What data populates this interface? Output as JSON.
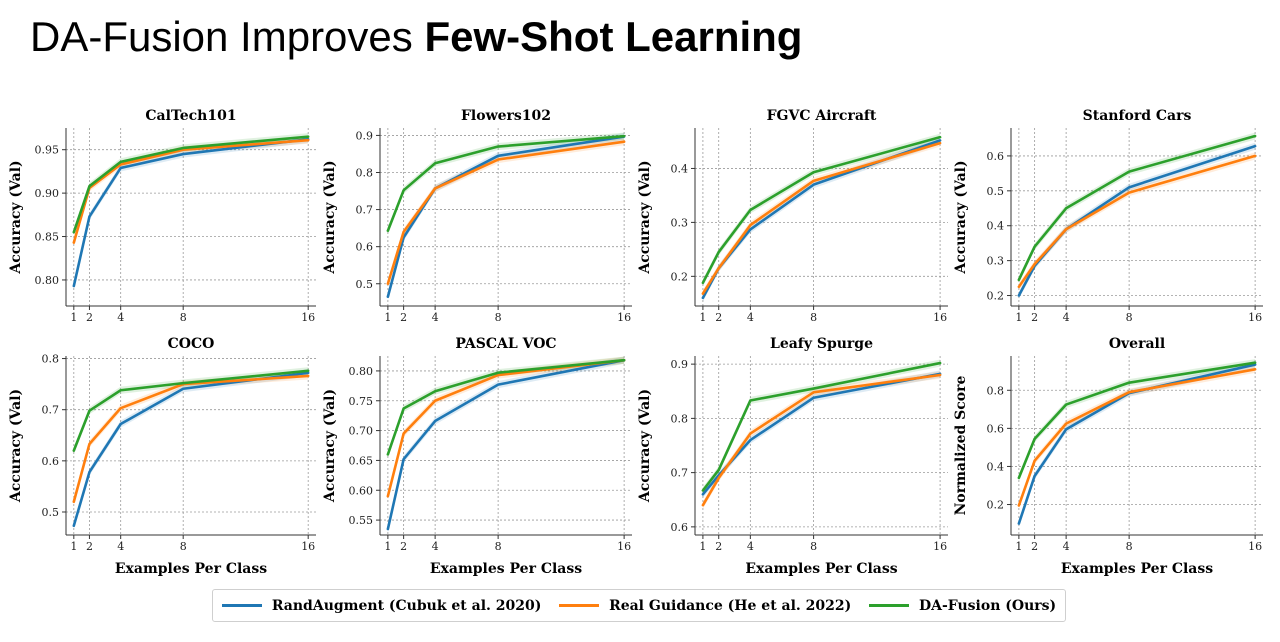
{
  "slide": {
    "title_regular": "DA-Fusion Improves ",
    "title_bold": "Few-Shot Learning"
  },
  "series_styles": [
    {
      "name": "RandAugment (Cubuk et al. 2020)",
      "color": "#1f77b4"
    },
    {
      "name": "Real Guidance (He et al. 2022)",
      "color": "#ff7f0e"
    },
    {
      "name": "DA-Fusion (Ours)",
      "color": "#2ca02c"
    }
  ],
  "chart_data": [
    {
      "type": "line",
      "title": "CalTech101",
      "xlabel": "",
      "ylabel": "Accuracy (Val)",
      "x": [
        1,
        2,
        4,
        8,
        16
      ],
      "ylim": [
        0.77,
        0.975
      ],
      "yticks": [
        "0.80",
        "0.85",
        "0.90",
        "0.95"
      ],
      "grid": true,
      "series": [
        {
          "name": "RandAugment (Cubuk et al. 2020)",
          "values": [
            0.793,
            0.873,
            0.929,
            0.945,
            0.962
          ]
        },
        {
          "name": "Real Guidance (He et al. 2022)",
          "values": [
            0.843,
            0.906,
            0.933,
            0.95,
            0.961
          ]
        },
        {
          "name": "DA-Fusion (Ours)",
          "values": [
            0.855,
            0.908,
            0.936,
            0.952,
            0.965
          ]
        }
      ]
    },
    {
      "type": "line",
      "title": "Flowers102",
      "xlabel": "",
      "ylabel": "Accuracy (Val)",
      "x": [
        1,
        2,
        4,
        8,
        16
      ],
      "ylim": [
        0.44,
        0.92
      ],
      "yticks": [
        "0.5",
        "0.6",
        "0.7",
        "0.8",
        "0.9"
      ],
      "grid": true,
      "series": [
        {
          "name": "RandAugment (Cubuk et al. 2020)",
          "values": [
            0.465,
            0.625,
            0.757,
            0.845,
            0.897
          ]
        },
        {
          "name": "Real Guidance (He et al. 2022)",
          "values": [
            0.5,
            0.64,
            0.757,
            0.835,
            0.883
          ]
        },
        {
          "name": "DA-Fusion (Ours)",
          "values": [
            0.643,
            0.752,
            0.825,
            0.87,
            0.898
          ]
        }
      ]
    },
    {
      "type": "line",
      "title": "FGVC Aircraft",
      "xlabel": "",
      "ylabel": "Accuracy (Val)",
      "x": [
        1,
        2,
        4,
        8,
        16
      ],
      "ylim": [
        0.145,
        0.475
      ],
      "yticks": [
        "0.2",
        "0.3",
        "0.4"
      ],
      "grid": true,
      "series": [
        {
          "name": "RandAugment (Cubuk et al. 2020)",
          "values": [
            0.16,
            0.215,
            0.287,
            0.37,
            0.452
          ]
        },
        {
          "name": "Real Guidance (He et al. 2022)",
          "values": [
            0.168,
            0.215,
            0.295,
            0.377,
            0.447
          ]
        },
        {
          "name": "DA-Fusion (Ours)",
          "values": [
            0.188,
            0.245,
            0.323,
            0.393,
            0.458
          ]
        }
      ]
    },
    {
      "type": "line",
      "title": "Stanford Cars",
      "xlabel": "",
      "ylabel": "Accuracy (Val)",
      "x": [
        1,
        2,
        4,
        8,
        16
      ],
      "ylim": [
        0.17,
        0.68
      ],
      "yticks": [
        "0.2",
        "0.3",
        "0.4",
        "0.5",
        "0.6"
      ],
      "grid": true,
      "series": [
        {
          "name": "RandAugment (Cubuk et al. 2020)",
          "values": [
            0.2,
            0.285,
            0.39,
            0.51,
            0.628
          ]
        },
        {
          "name": "Real Guidance (He et al. 2022)",
          "values": [
            0.225,
            0.29,
            0.39,
            0.495,
            0.6
          ]
        },
        {
          "name": "DA-Fusion (Ours)",
          "values": [
            0.245,
            0.34,
            0.45,
            0.555,
            0.657
          ]
        }
      ]
    },
    {
      "type": "line",
      "title": "COCO",
      "xlabel": "Examples Per Class",
      "ylabel": "Accuracy (Val)",
      "x": [
        1,
        2,
        4,
        8,
        16
      ],
      "ylim": [
        0.455,
        0.805
      ],
      "yticks": [
        "0.5",
        "0.6",
        "0.7",
        "0.8"
      ],
      "grid": true,
      "series": [
        {
          "name": "RandAugment (Cubuk et al. 2020)",
          "values": [
            0.473,
            0.578,
            0.672,
            0.741,
            0.772
          ]
        },
        {
          "name": "Real Guidance (He et al. 2022)",
          "values": [
            0.52,
            0.633,
            0.703,
            0.75,
            0.766
          ]
        },
        {
          "name": "DA-Fusion (Ours)",
          "values": [
            0.62,
            0.698,
            0.738,
            0.752,
            0.776
          ]
        }
      ]
    },
    {
      "type": "line",
      "title": "PASCAL VOC",
      "xlabel": "Examples Per Class",
      "ylabel": "Accuracy (Val)",
      "x": [
        1,
        2,
        4,
        8,
        16
      ],
      "ylim": [
        0.525,
        0.825
      ],
      "yticks": [
        "0.55",
        "0.60",
        "0.65",
        "0.70",
        "0.75",
        "0.80"
      ],
      "grid": true,
      "series": [
        {
          "name": "RandAugment (Cubuk et al. 2020)",
          "values": [
            0.535,
            0.652,
            0.716,
            0.777,
            0.818
          ]
        },
        {
          "name": "Real Guidance (He et al. 2022)",
          "values": [
            0.59,
            0.695,
            0.75,
            0.793,
            0.818
          ]
        },
        {
          "name": "DA-Fusion (Ours)",
          "values": [
            0.66,
            0.737,
            0.766,
            0.797,
            0.818
          ]
        }
      ]
    },
    {
      "type": "line",
      "title": "Leafy Spurge",
      "xlabel": "Examples Per Class",
      "ylabel": "Accuracy (Val)",
      "x": [
        1,
        2,
        4,
        8,
        16
      ],
      "ylim": [
        0.585,
        0.915
      ],
      "yticks": [
        "0.6",
        "0.7",
        "0.8",
        "0.9"
      ],
      "grid": true,
      "series": [
        {
          "name": "RandAugment (Cubuk et al. 2020)",
          "values": [
            0.66,
            0.695,
            0.76,
            0.838,
            0.882
          ]
        },
        {
          "name": "Real Guidance (He et al. 2022)",
          "values": [
            0.64,
            0.69,
            0.772,
            0.848,
            0.88
          ]
        },
        {
          "name": "DA-Fusion (Ours)",
          "values": [
            0.667,
            0.705,
            0.833,
            0.855,
            0.902
          ]
        }
      ]
    },
    {
      "type": "line",
      "title": "Overall",
      "xlabel": "Examples Per Class",
      "ylabel": "Normalized Score",
      "x": [
        1,
        2,
        4,
        8,
        16
      ],
      "ylim": [
        0.04,
        0.98
      ],
      "yticks": [
        "0.2",
        "0.4",
        "0.6",
        "0.8"
      ],
      "grid": true,
      "series": [
        {
          "name": "RandAugment (Cubuk et al. 2020)",
          "values": [
            0.1,
            0.35,
            0.595,
            0.785,
            0.935
          ]
        },
        {
          "name": "Real Guidance (He et al. 2022)",
          "values": [
            0.195,
            0.43,
            0.625,
            0.79,
            0.91
          ]
        },
        {
          "name": "DA-Fusion (Ours)",
          "values": [
            0.34,
            0.545,
            0.725,
            0.84,
            0.945
          ]
        }
      ]
    }
  ]
}
